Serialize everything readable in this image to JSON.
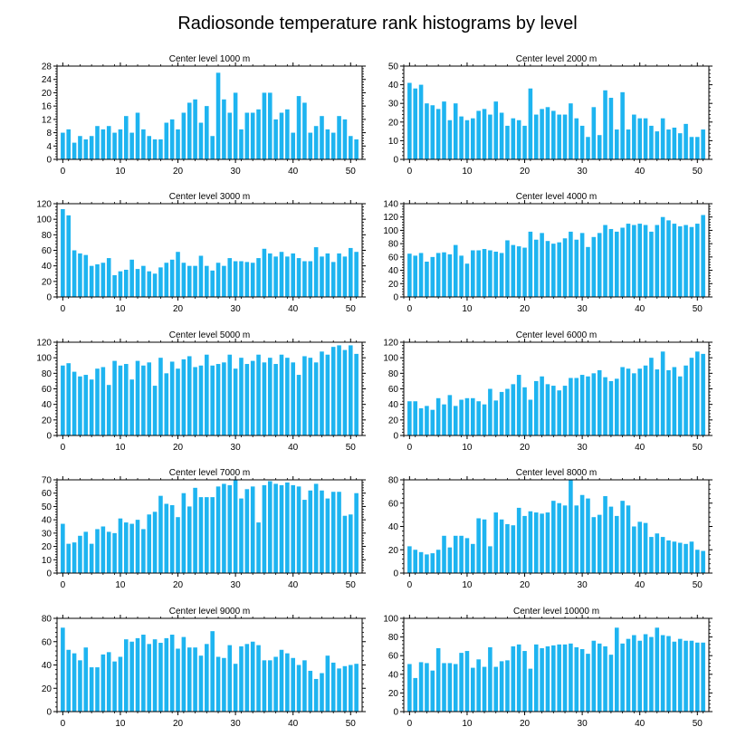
{
  "title": "Radiosonde temperature rank histograms by level",
  "chart_data": [
    {
      "type": "bar",
      "title": "Center level 1000 m",
      "x": [
        0,
        1,
        2,
        3,
        4,
        5,
        6,
        7,
        8,
        9,
        10,
        11,
        12,
        13,
        14,
        15,
        16,
        17,
        18,
        19,
        20,
        21,
        22,
        23,
        24,
        25,
        26,
        27,
        28,
        29,
        30,
        31,
        32,
        33,
        34,
        35,
        36,
        37,
        38,
        39,
        40,
        41,
        42,
        43,
        44,
        45,
        46,
        47,
        48,
        49,
        50,
        51
      ],
      "values": [
        8,
        9,
        5,
        7,
        6,
        7,
        10,
        9,
        10,
        8,
        9,
        13,
        8,
        14,
        9,
        7,
        6,
        6,
        11,
        12,
        9,
        14,
        17,
        18,
        11,
        16,
        7,
        26,
        18,
        14,
        20,
        9,
        14,
        14,
        15,
        20,
        20,
        12,
        14,
        15,
        8,
        19,
        17,
        8,
        10,
        13,
        9,
        8,
        13,
        12,
        7,
        6
      ],
      "xlim": [
        -1,
        52
      ],
      "ylim": [
        0,
        28
      ],
      "xticks": [
        0,
        10,
        20,
        30,
        40,
        50
      ],
      "yticks": [
        0,
        4,
        8,
        12,
        16,
        20,
        24,
        28
      ],
      "xticklabels": [
        "0",
        "10",
        "20",
        "30",
        "40",
        "50"
      ],
      "yticklabels": [
        "0",
        "4",
        "8",
        "12",
        "16",
        "20",
        "24",
        "28"
      ]
    },
    {
      "type": "bar",
      "title": "Center level 2000 m",
      "x": [
        0,
        1,
        2,
        3,
        4,
        5,
        6,
        7,
        8,
        9,
        10,
        11,
        12,
        13,
        14,
        15,
        16,
        17,
        18,
        19,
        20,
        21,
        22,
        23,
        24,
        25,
        26,
        27,
        28,
        29,
        30,
        31,
        32,
        33,
        34,
        35,
        36,
        37,
        38,
        39,
        40,
        41,
        42,
        43,
        44,
        45,
        46,
        47,
        48,
        49,
        50,
        51
      ],
      "values": [
        41,
        38,
        40,
        30,
        29,
        27,
        31,
        21,
        30,
        23,
        21,
        22,
        26,
        27,
        24,
        31,
        25,
        18,
        22,
        21,
        18,
        38,
        24,
        27,
        28,
        26,
        24,
        24,
        30,
        22,
        18,
        12,
        28,
        13,
        37,
        33,
        16,
        36,
        16,
        24,
        22,
        22,
        18,
        15,
        22,
        16,
        17,
        14,
        19,
        12,
        12,
        16
      ],
      "xlim": [
        -1,
        52
      ],
      "ylim": [
        0,
        50
      ],
      "xticks": [
        0,
        10,
        20,
        30,
        40,
        50
      ],
      "yticks": [
        0,
        10,
        20,
        30,
        40,
        50
      ],
      "xticklabels": [
        "0",
        "10",
        "20",
        "30",
        "40",
        "50"
      ],
      "yticklabels": [
        "0",
        "10",
        "20",
        "30",
        "40",
        "50"
      ]
    },
    {
      "type": "bar",
      "title": "Center level 3000 m",
      "x": [
        0,
        1,
        2,
        3,
        4,
        5,
        6,
        7,
        8,
        9,
        10,
        11,
        12,
        13,
        14,
        15,
        16,
        17,
        18,
        19,
        20,
        21,
        22,
        23,
        24,
        25,
        26,
        27,
        28,
        29,
        30,
        31,
        32,
        33,
        34,
        35,
        36,
        37,
        38,
        39,
        40,
        41,
        42,
        43,
        44,
        45,
        46,
        47,
        48,
        49,
        50,
        51
      ],
      "values": [
        113,
        105,
        60,
        56,
        54,
        40,
        42,
        44,
        50,
        28,
        33,
        35,
        48,
        36,
        40,
        33,
        30,
        38,
        44,
        48,
        58,
        44,
        40,
        40,
        53,
        40,
        34,
        44,
        40,
        50,
        46,
        46,
        45,
        44,
        50,
        62,
        56,
        52,
        58,
        52,
        56,
        50,
        46,
        46,
        64,
        52,
        56,
        45,
        56,
        52,
        63,
        58
      ],
      "xlim": [
        -1,
        52
      ],
      "ylim": [
        0,
        120
      ],
      "xticks": [
        0,
        10,
        20,
        30,
        40,
        50
      ],
      "yticks": [
        0,
        20,
        40,
        60,
        80,
        100,
        120
      ],
      "xticklabels": [
        "0",
        "10",
        "20",
        "30",
        "40",
        "50"
      ],
      "yticklabels": [
        "0",
        "20",
        "40",
        "60",
        "80",
        "100",
        "120"
      ]
    },
    {
      "type": "bar",
      "title": "Center level 4000 m",
      "x": [
        0,
        1,
        2,
        3,
        4,
        5,
        6,
        7,
        8,
        9,
        10,
        11,
        12,
        13,
        14,
        15,
        16,
        17,
        18,
        19,
        20,
        21,
        22,
        23,
        24,
        25,
        26,
        27,
        28,
        29,
        30,
        31,
        32,
        33,
        34,
        35,
        36,
        37,
        38,
        39,
        40,
        41,
        42,
        43,
        44,
        45,
        46,
        47,
        48,
        49,
        50,
        51
      ],
      "values": [
        65,
        62,
        66,
        53,
        60,
        66,
        67,
        64,
        78,
        62,
        50,
        70,
        70,
        72,
        70,
        68,
        66,
        85,
        78,
        76,
        74,
        98,
        86,
        96,
        84,
        80,
        82,
        88,
        98,
        86,
        96,
        75,
        90,
        96,
        108,
        102,
        98,
        104,
        110,
        108,
        110,
        108,
        98,
        108,
        120,
        115,
        110,
        106,
        108,
        105,
        110,
        123
      ],
      "xlim": [
        -1,
        52
      ],
      "ylim": [
        0,
        140
      ],
      "xticks": [
        0,
        10,
        20,
        30,
        40,
        50
      ],
      "yticks": [
        0,
        20,
        40,
        60,
        80,
        100,
        120,
        140
      ],
      "xticklabels": [
        "0",
        "10",
        "20",
        "30",
        "40",
        "50"
      ],
      "yticklabels": [
        "0",
        "20",
        "40",
        "60",
        "80",
        "100",
        "120",
        "140"
      ]
    },
    {
      "type": "bar",
      "title": "Center level 5000 m",
      "x": [
        0,
        1,
        2,
        3,
        4,
        5,
        6,
        7,
        8,
        9,
        10,
        11,
        12,
        13,
        14,
        15,
        16,
        17,
        18,
        19,
        20,
        21,
        22,
        23,
        24,
        25,
        26,
        27,
        28,
        29,
        30,
        31,
        32,
        33,
        34,
        35,
        36,
        37,
        38,
        39,
        40,
        41,
        42,
        43,
        44,
        45,
        46,
        47,
        48,
        49,
        50,
        51
      ],
      "values": [
        90,
        93,
        82,
        76,
        78,
        72,
        86,
        88,
        65,
        96,
        90,
        92,
        72,
        96,
        90,
        94,
        64,
        100,
        80,
        95,
        86,
        98,
        102,
        88,
        90,
        104,
        90,
        92,
        94,
        104,
        86,
        100,
        92,
        96,
        104,
        94,
        100,
        92,
        104,
        100,
        94,
        78,
        102,
        100,
        94,
        108,
        104,
        114,
        116,
        110,
        116,
        105
      ],
      "xlim": [
        -1,
        52
      ],
      "ylim": [
        0,
        120
      ],
      "xticks": [
        0,
        10,
        20,
        30,
        40,
        50
      ],
      "yticks": [
        0,
        20,
        40,
        60,
        80,
        100,
        120
      ],
      "xticklabels": [
        "0",
        "10",
        "20",
        "30",
        "40",
        "50"
      ],
      "yticklabels": [
        "0",
        "20",
        "40",
        "60",
        "80",
        "100",
        "120"
      ]
    },
    {
      "type": "bar",
      "title": "Center level 6000 m",
      "x": [
        0,
        1,
        2,
        3,
        4,
        5,
        6,
        7,
        8,
        9,
        10,
        11,
        12,
        13,
        14,
        15,
        16,
        17,
        18,
        19,
        20,
        21,
        22,
        23,
        24,
        25,
        26,
        27,
        28,
        29,
        30,
        31,
        32,
        33,
        34,
        35,
        36,
        37,
        38,
        39,
        40,
        41,
        42,
        43,
        44,
        45,
        46,
        47,
        48,
        49,
        50,
        51
      ],
      "values": [
        44,
        44,
        35,
        38,
        33,
        48,
        40,
        52,
        38,
        46,
        48,
        48,
        44,
        40,
        60,
        45,
        56,
        60,
        66,
        78,
        62,
        46,
        70,
        76,
        66,
        64,
        58,
        64,
        74,
        74,
        78,
        76,
        80,
        84,
        75,
        70,
        73,
        88,
        86,
        80,
        86,
        90,
        100,
        85,
        108,
        84,
        88,
        76,
        90,
        100,
        108,
        105
      ],
      "xlim": [
        -1,
        52
      ],
      "ylim": [
        0,
        120
      ],
      "xticks": [
        0,
        10,
        20,
        30,
        40,
        50
      ],
      "yticks": [
        0,
        20,
        40,
        60,
        80,
        100,
        120
      ],
      "xticklabels": [
        "0",
        "10",
        "20",
        "30",
        "40",
        "50"
      ],
      "yticklabels": [
        "0",
        "20",
        "40",
        "60",
        "80",
        "100",
        "120"
      ]
    },
    {
      "type": "bar",
      "title": "Center level 7000 m",
      "x": [
        0,
        1,
        2,
        3,
        4,
        5,
        6,
        7,
        8,
        9,
        10,
        11,
        12,
        13,
        14,
        15,
        16,
        17,
        18,
        19,
        20,
        21,
        22,
        23,
        24,
        25,
        26,
        27,
        28,
        29,
        30,
        31,
        32,
        33,
        34,
        35,
        36,
        37,
        38,
        39,
        40,
        41,
        42,
        43,
        44,
        45,
        46,
        47,
        48,
        49,
        50,
        51
      ],
      "values": [
        37,
        22,
        23,
        28,
        31,
        22,
        33,
        35,
        31,
        30,
        41,
        38,
        37,
        40,
        33,
        44,
        46,
        58,
        52,
        51,
        42,
        60,
        50,
        64,
        57,
        57,
        57,
        65,
        67,
        66,
        70,
        56,
        63,
        65,
        38,
        66,
        69,
        67,
        66,
        68,
        66,
        65,
        55,
        62,
        67,
        62,
        56,
        61,
        61,
        43,
        44,
        60
      ],
      "xlim": [
        -1,
        52
      ],
      "ylim": [
        0,
        70
      ],
      "xticks": [
        0,
        10,
        20,
        30,
        40,
        50
      ],
      "yticks": [
        0,
        10,
        20,
        30,
        40,
        50,
        60,
        70
      ],
      "xticklabels": [
        "0",
        "10",
        "20",
        "30",
        "40",
        "50"
      ],
      "yticklabels": [
        "0",
        "10",
        "20",
        "30",
        "40",
        "50",
        "60",
        "70"
      ]
    },
    {
      "type": "bar",
      "title": "Center level 8000 m",
      "x": [
        0,
        1,
        2,
        3,
        4,
        5,
        6,
        7,
        8,
        9,
        10,
        11,
        12,
        13,
        14,
        15,
        16,
        17,
        18,
        19,
        20,
        21,
        22,
        23,
        24,
        25,
        26,
        27,
        28,
        29,
        30,
        31,
        32,
        33,
        34,
        35,
        36,
        37,
        38,
        39,
        40,
        41,
        42,
        43,
        44,
        45,
        46,
        47,
        48,
        49,
        50,
        51
      ],
      "values": [
        23,
        20,
        18,
        16,
        17,
        20,
        32,
        22,
        32,
        32,
        30,
        25,
        47,
        46,
        23,
        52,
        46,
        42,
        41,
        56,
        49,
        53,
        52,
        51,
        52,
        62,
        60,
        58,
        80,
        58,
        67,
        64,
        48,
        50,
        66,
        57,
        49,
        62,
        58,
        40,
        44,
        43,
        31,
        34,
        31,
        28,
        27,
        26,
        25,
        27,
        20,
        19
      ],
      "xlim": [
        -1,
        52
      ],
      "ylim": [
        0,
        80
      ],
      "xticks": [
        0,
        10,
        20,
        30,
        40,
        50
      ],
      "yticks": [
        0,
        20,
        40,
        60,
        80
      ],
      "xticklabels": [
        "0",
        "10",
        "20",
        "30",
        "40",
        "50"
      ],
      "yticklabels": [
        "0",
        "20",
        "40",
        "60",
        "80"
      ]
    },
    {
      "type": "bar",
      "title": "Center level 9000 m",
      "x": [
        0,
        1,
        2,
        3,
        4,
        5,
        6,
        7,
        8,
        9,
        10,
        11,
        12,
        13,
        14,
        15,
        16,
        17,
        18,
        19,
        20,
        21,
        22,
        23,
        24,
        25,
        26,
        27,
        28,
        29,
        30,
        31,
        32,
        33,
        34,
        35,
        36,
        37,
        38,
        39,
        40,
        41,
        42,
        43,
        44,
        45,
        46,
        47,
        48,
        49,
        50,
        51
      ],
      "values": [
        72,
        53,
        50,
        44,
        55,
        38,
        38,
        49,
        51,
        43,
        47,
        62,
        60,
        63,
        66,
        58,
        62,
        59,
        63,
        66,
        54,
        64,
        55,
        55,
        48,
        58,
        69,
        47,
        46,
        57,
        41,
        56,
        58,
        60,
        57,
        44,
        44,
        47,
        53,
        50,
        46,
        40,
        44,
        35,
        28,
        33,
        48,
        42,
        37,
        39,
        40,
        41
      ],
      "xlim": [
        -1,
        52
      ],
      "ylim": [
        0,
        80
      ],
      "xticks": [
        0,
        10,
        20,
        30,
        40,
        50
      ],
      "yticks": [
        0,
        20,
        40,
        60,
        80
      ],
      "xticklabels": [
        "0",
        "10",
        "20",
        "30",
        "40",
        "50"
      ],
      "yticklabels": [
        "0",
        "20",
        "40",
        "60",
        "80"
      ]
    },
    {
      "type": "bar",
      "title": "Center level 10000 m",
      "x": [
        0,
        1,
        2,
        3,
        4,
        5,
        6,
        7,
        8,
        9,
        10,
        11,
        12,
        13,
        14,
        15,
        16,
        17,
        18,
        19,
        20,
        21,
        22,
        23,
        24,
        25,
        26,
        27,
        28,
        29,
        30,
        31,
        32,
        33,
        34,
        35,
        36,
        37,
        38,
        39,
        40,
        41,
        42,
        43,
        44,
        45,
        46,
        47,
        48,
        49,
        50,
        51
      ],
      "values": [
        51,
        36,
        53,
        52,
        44,
        68,
        52,
        52,
        51,
        63,
        65,
        47,
        56,
        48,
        69,
        48,
        54,
        55,
        70,
        72,
        65,
        46,
        72,
        68,
        70,
        71,
        72,
        72,
        73,
        69,
        67,
        62,
        76,
        73,
        70,
        61,
        90,
        73,
        78,
        82,
        76,
        83,
        80,
        90,
        82,
        81,
        75,
        78,
        76,
        76,
        74,
        74
      ],
      "xlim": [
        -1,
        52
      ],
      "ylim": [
        0,
        100
      ],
      "xticks": [
        0,
        10,
        20,
        30,
        40,
        50
      ],
      "yticks": [
        0,
        20,
        40,
        60,
        80,
        100
      ],
      "xticklabels": [
        "0",
        "10",
        "20",
        "30",
        "40",
        "50"
      ],
      "yticklabels": [
        "0",
        "20",
        "40",
        "60",
        "80",
        "100"
      ]
    }
  ],
  "colors": {
    "bar": "#1EB4F0",
    "axis": "#000000",
    "background": "#ffffff"
  }
}
